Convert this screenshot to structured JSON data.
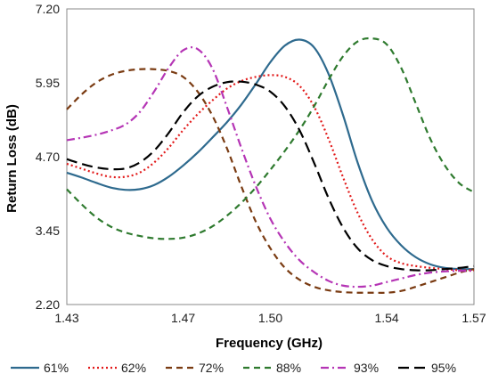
{
  "chart_data": {
    "type": "line",
    "title": "",
    "xlabel": "Frequency (GHz)",
    "ylabel": "Return Loss (dB)",
    "xlim": [
      1.43,
      1.57
    ],
    "ylim": [
      2.2,
      7.2
    ],
    "x_ticks": [
      1.43,
      1.47,
      1.5,
      1.54,
      1.57
    ],
    "x_tick_labels": [
      "1.43",
      "1.47",
      "1.50",
      "1.54",
      "1.57"
    ],
    "y_ticks": [
      2.2,
      3.45,
      4.7,
      5.95,
      7.2
    ],
    "y_tick_labels": [
      "2.20",
      "3.45",
      "4.70",
      "5.95",
      "7.20"
    ],
    "grid": false,
    "legend_position": "bottom",
    "series": [
      {
        "name": "61%",
        "color": "#2E6A8E",
        "dash": "solid",
        "x": [
          1.43,
          1.435,
          1.44,
          1.445,
          1.45,
          1.455,
          1.46,
          1.465,
          1.47,
          1.475,
          1.48,
          1.485,
          1.49,
          1.495,
          1.5,
          1.505,
          1.51,
          1.515,
          1.52,
          1.525,
          1.53,
          1.535,
          1.54,
          1.545,
          1.55,
          1.555,
          1.56,
          1.565,
          1.57
        ],
        "y": [
          4.43,
          4.35,
          4.26,
          4.18,
          4.14,
          4.15,
          4.22,
          4.36,
          4.55,
          4.77,
          5.02,
          5.28,
          5.58,
          5.93,
          6.3,
          6.58,
          6.68,
          6.55,
          6.1,
          5.4,
          4.6,
          3.95,
          3.5,
          3.2,
          3.0,
          2.88,
          2.82,
          2.8,
          2.8
        ]
      },
      {
        "name": "62%",
        "color": "#E21A1A",
        "dash": "dotted",
        "x": [
          1.43,
          1.435,
          1.44,
          1.445,
          1.45,
          1.455,
          1.46,
          1.465,
          1.47,
          1.475,
          1.48,
          1.485,
          1.49,
          1.495,
          1.5,
          1.505,
          1.51,
          1.515,
          1.52,
          1.525,
          1.53,
          1.535,
          1.54,
          1.545,
          1.55,
          1.555,
          1.56,
          1.565,
          1.57
        ],
        "y": [
          4.58,
          4.5,
          4.42,
          4.36,
          4.36,
          4.43,
          4.6,
          4.85,
          5.15,
          5.42,
          5.65,
          5.85,
          5.98,
          6.05,
          6.08,
          6.05,
          5.9,
          5.55,
          5.0,
          4.35,
          3.75,
          3.3,
          3.02,
          2.9,
          2.85,
          2.82,
          2.8,
          2.78,
          2.78
        ]
      },
      {
        "name": "72%",
        "color": "#7A3B12",
        "dash": "dashed",
        "x": [
          1.43,
          1.435,
          1.44,
          1.445,
          1.45,
          1.455,
          1.46,
          1.465,
          1.47,
          1.475,
          1.48,
          1.485,
          1.49,
          1.495,
          1.5,
          1.505,
          1.51,
          1.515,
          1.52,
          1.525,
          1.53,
          1.535,
          1.54,
          1.545,
          1.55,
          1.555,
          1.56,
          1.565,
          1.57
        ],
        "y": [
          5.5,
          5.75,
          5.95,
          6.08,
          6.15,
          6.18,
          6.18,
          6.15,
          6.05,
          5.8,
          5.4,
          4.85,
          4.2,
          3.6,
          3.15,
          2.82,
          2.62,
          2.5,
          2.44,
          2.41,
          2.4,
          2.4,
          2.4,
          2.43,
          2.5,
          2.58,
          2.66,
          2.74,
          2.8
        ]
      },
      {
        "name": "88%",
        "color": "#2E7A2E",
        "dash": "dashed",
        "x": [
          1.43,
          1.435,
          1.44,
          1.445,
          1.45,
          1.455,
          1.46,
          1.465,
          1.47,
          1.475,
          1.48,
          1.485,
          1.49,
          1.495,
          1.5,
          1.505,
          1.51,
          1.515,
          1.52,
          1.525,
          1.53,
          1.535,
          1.54,
          1.545,
          1.55,
          1.555,
          1.56,
          1.565,
          1.57
        ],
        "y": [
          4.15,
          3.9,
          3.68,
          3.52,
          3.42,
          3.36,
          3.32,
          3.31,
          3.33,
          3.4,
          3.52,
          3.7,
          3.92,
          4.18,
          4.48,
          4.8,
          5.15,
          5.55,
          6.0,
          6.4,
          6.65,
          6.7,
          6.6,
          6.2,
          5.6,
          5.0,
          4.55,
          4.25,
          4.1
        ]
      },
      {
        "name": "93%",
        "color": "#B535B5",
        "dash": "dashdot",
        "x": [
          1.43,
          1.435,
          1.44,
          1.445,
          1.45,
          1.455,
          1.46,
          1.465,
          1.47,
          1.475,
          1.48,
          1.485,
          1.49,
          1.495,
          1.5,
          1.505,
          1.51,
          1.515,
          1.52,
          1.525,
          1.53,
          1.535,
          1.54,
          1.545,
          1.55,
          1.555,
          1.56,
          1.565,
          1.57
        ],
        "y": [
          4.98,
          5.02,
          5.07,
          5.14,
          5.24,
          5.45,
          5.8,
          6.2,
          6.5,
          6.52,
          6.2,
          5.55,
          4.85,
          4.2,
          3.65,
          3.25,
          2.95,
          2.75,
          2.6,
          2.52,
          2.5,
          2.52,
          2.58,
          2.64,
          2.7,
          2.74,
          2.76,
          2.77,
          2.77
        ]
      },
      {
        "name": "95%",
        "color": "#000000",
        "dash": "longdash",
        "x": [
          1.43,
          1.435,
          1.44,
          1.445,
          1.45,
          1.455,
          1.46,
          1.465,
          1.47,
          1.475,
          1.48,
          1.485,
          1.49,
          1.495,
          1.5,
          1.505,
          1.51,
          1.515,
          1.52,
          1.525,
          1.53,
          1.535,
          1.54,
          1.545,
          1.55,
          1.555,
          1.56,
          1.565,
          1.57
        ],
        "y": [
          4.66,
          4.58,
          4.52,
          4.49,
          4.5,
          4.6,
          4.8,
          5.1,
          5.45,
          5.72,
          5.88,
          5.96,
          5.97,
          5.92,
          5.8,
          5.55,
          5.15,
          4.6,
          4.0,
          3.5,
          3.15,
          2.95,
          2.85,
          2.8,
          2.78,
          2.78,
          2.8,
          2.82,
          2.85
        ]
      }
    ]
  }
}
